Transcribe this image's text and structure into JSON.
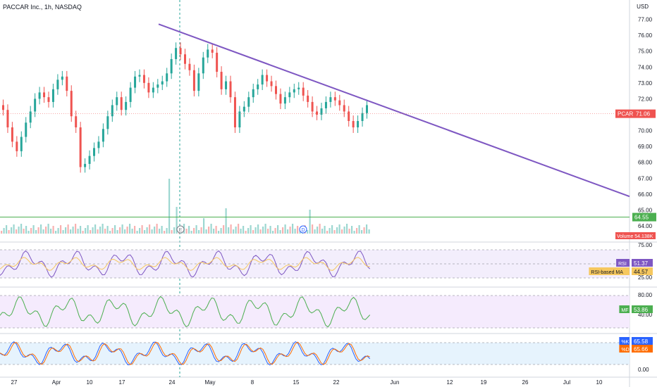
{
  "header": {
    "title": "PACCAR Inc., 1h, NASDAQ",
    "currency": "USD"
  },
  "colors": {
    "up": "#26a69a",
    "down": "#ef5350",
    "trendline": "#7e57c2",
    "hline": "#4caf50",
    "rsi": "#7e57c2",
    "rsi_ma": "#f6c85f",
    "mfi": "#4caf50",
    "stoch_k": "#2962ff",
    "stoch_d": "#ff6d00",
    "panel_rsi_bg": "#f3eefc",
    "panel_mfi_bg": "#f5ebfd",
    "panel_stoch_bg": "#e6f3fd"
  },
  "chart_data": {
    "type": "candlestick",
    "y_axis": {
      "ticks": [
        "77.00",
        "76.00",
        "75.00",
        "74.00",
        "73.00",
        "72.00",
        "71.00",
        "70.00",
        "69.00",
        "68.00",
        "67.00",
        "66.00",
        "65.00",
        "64.00"
      ],
      "range": [
        63.6,
        77.6
      ]
    },
    "x_axis": {
      "ticks": [
        "27",
        "Apr",
        "10",
        "17",
        "24",
        "May",
        "8",
        "15",
        "22",
        "Jun",
        "12",
        "19",
        "26",
        "Jul",
        "10"
      ]
    },
    "price_close_series": [
      71.3,
      70.2,
      69.3,
      68.7,
      69.6,
      70.5,
      71.2,
      72.0,
      72.4,
      72.1,
      71.8,
      72.6,
      73.2,
      73.4,
      72.5,
      70.9,
      70.2,
      67.7,
      67.9,
      68.4,
      68.9,
      69.3,
      70.1,
      70.9,
      71.6,
      72.1,
      71.3,
      71.8,
      72.7,
      73.4,
      73.5,
      73.0,
      72.4,
      72.7,
      72.9,
      73.1,
      73.6,
      74.5,
      75.2,
      74.8,
      74.2,
      73.8,
      72.5,
      73.6,
      74.6,
      75.1,
      74.9,
      73.7,
      72.6,
      73.1,
      72.1,
      70.2,
      71.2,
      71.5,
      72.1,
      72.6,
      72.9,
      73.5,
      73.1,
      72.8,
      72.3,
      71.7,
      72.1,
      72.4,
      72.6,
      72.7,
      72.2,
      71.8,
      71.2,
      71.0,
      71.4,
      71.8,
      72.1,
      71.9,
      71.6,
      71.2,
      70.6,
      70.2,
      70.6,
      71.1,
      71.6
    ],
    "trendline": {
      "start": {
        "x_index": 36,
        "y": 76.7
      },
      "end": {
        "x_index": 169,
        "y": 65.85
      }
    },
    "horizontal_lines": [
      {
        "y": 64.55,
        "label": "64.55"
      }
    ],
    "current_price": {
      "label": "PCAR",
      "value": 71.06
    },
    "volume": {
      "label": "Volume",
      "value": "54.138K"
    },
    "event_markers": [
      {
        "type": "E",
        "x_index": 38
      },
      {
        "type": "D",
        "x_index": 64
      }
    ],
    "indicators": [
      {
        "name": "RSI",
        "ticks": [
          "75.00",
          "50.00",
          "25.00"
        ],
        "range": [
          18,
          82
        ],
        "bands": [
          70,
          30
        ],
        "mid": 50,
        "series": [
          {
            "name": "RSI",
            "value": "51.37"
          },
          {
            "name": "RSI-based MA",
            "value": "44.57"
          }
        ]
      },
      {
        "name": "MF",
        "ticks": [
          "80.00",
          "40.00"
        ],
        "range": [
          0,
          100
        ],
        "bands": [
          80,
          20
        ],
        "series": [
          {
            "name": "MF",
            "value": "53.86"
          }
        ]
      },
      {
        "name": "Stoch",
        "ticks": [
          "0.00"
        ],
        "range": [
          -5,
          105
        ],
        "bands": [
          80,
          20
        ],
        "series": [
          {
            "name": "%K",
            "value": "65.58"
          },
          {
            "name": "%D",
            "value": "65.66"
          }
        ]
      }
    ]
  }
}
